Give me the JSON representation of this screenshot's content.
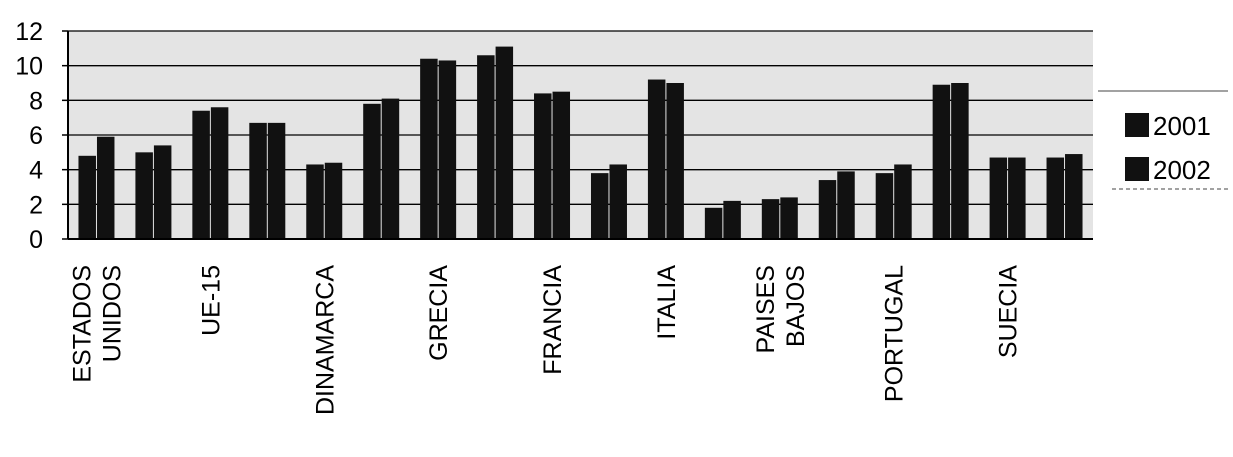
{
  "chart_data": {
    "type": "bar",
    "title": "",
    "xlabel": "",
    "ylabel": "",
    "ylim": [
      0,
      12
    ],
    "yticks": [
      0,
      2,
      4,
      6,
      8,
      10,
      12
    ],
    "grid": "horizontal",
    "legend_position": "right",
    "category_labels": [
      [
        "ESTADOS",
        "UNIDOS"
      ],
      [
        "UE-15"
      ],
      [
        "DINAMARCA"
      ],
      [
        "GRECIA"
      ],
      [
        "FRANCIA"
      ],
      [
        "ITALIA"
      ],
      [
        "PAISES",
        "BAJOS"
      ],
      [
        "PORTUGAL"
      ],
      [
        "SUECIA"
      ]
    ],
    "series": [
      {
        "name": "2001",
        "values": [
          4.8,
          5.0,
          7.4,
          6.7,
          4.3,
          7.8,
          10.4,
          10.6,
          8.4,
          3.8,
          9.2,
          1.8,
          2.3,
          3.4,
          3.8,
          8.9,
          4.7,
          4.7
        ]
      },
      {
        "name": "2002",
        "values": [
          5.9,
          5.4,
          7.6,
          6.7,
          4.4,
          8.1,
          10.3,
          11.1,
          8.5,
          4.3,
          9.0,
          2.2,
          2.4,
          3.9,
          4.3,
          9.0,
          4.7,
          4.9
        ]
      }
    ],
    "colors": {
      "bar": "#111111",
      "plot_bg": "#e4e4e4",
      "gridline": "#000000"
    }
  }
}
